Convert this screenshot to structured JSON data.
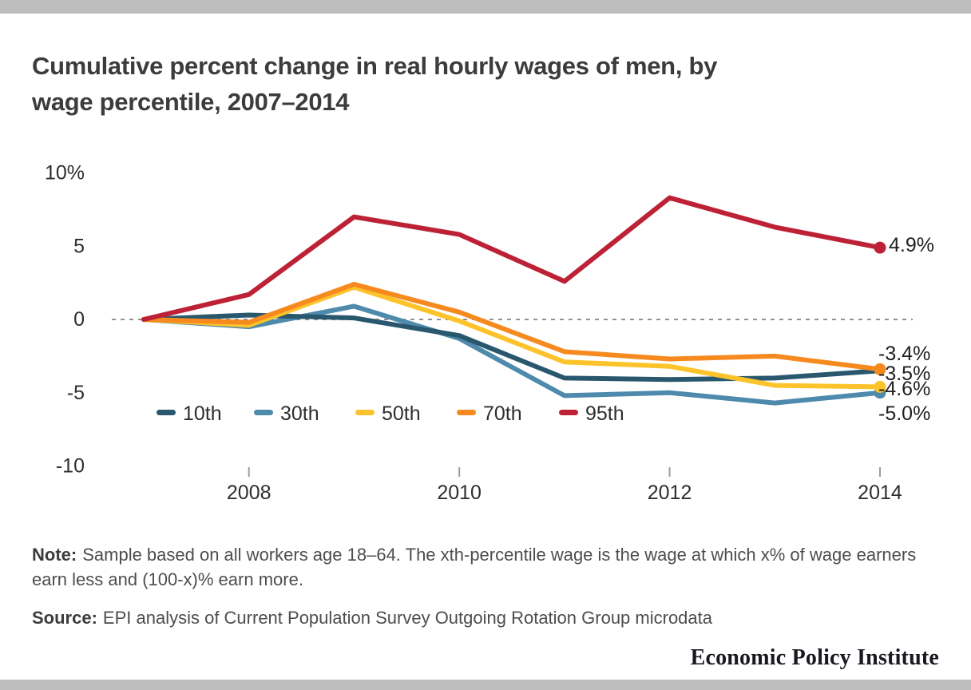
{
  "header": {
    "title_lines": [
      "Cumulative percent change in real hourly wages of men, by",
      "wage percentile, 2007–2014"
    ]
  },
  "chart_data": {
    "type": "line",
    "x": [
      2007,
      2008,
      2009,
      2010,
      2011,
      2012,
      2013,
      2014
    ],
    "series": [
      {
        "name": "10th",
        "color": "#29586E",
        "values": [
          0,
          0.3,
          0.1,
          -1.1,
          -4.0,
          -4.1,
          -4.0,
          -3.5
        ],
        "end_label": "-3.5%",
        "end_dot": false
      },
      {
        "name": "30th",
        "color": "#4E8AAB",
        "values": [
          0,
          -0.5,
          0.9,
          -1.3,
          -5.2,
          -5.0,
          -5.7,
          -5.0
        ],
        "end_label": "-5.0%",
        "end_dot": true
      },
      {
        "name": "50th",
        "color": "#FDC32A",
        "values": [
          0,
          -0.4,
          2.2,
          -0.1,
          -2.9,
          -3.2,
          -4.5,
          -4.6
        ],
        "end_label": "-4.6%",
        "end_dot": true
      },
      {
        "name": "70th",
        "color": "#F68A1F",
        "values": [
          0,
          -0.2,
          2.4,
          0.5,
          -2.2,
          -2.7,
          -2.5,
          -3.4
        ],
        "end_label": "-3.4%",
        "end_dot": true
      },
      {
        "name": "95th",
        "color": "#BD2135",
        "values": [
          0,
          1.7,
          7.0,
          5.8,
          2.6,
          8.3,
          6.3,
          4.9
        ],
        "end_label": "4.9%",
        "end_dot": true
      }
    ],
    "draw_order": [
      1,
      0,
      2,
      3,
      4
    ],
    "yticks": [
      {
        "v": 10,
        "label": "10%"
      },
      {
        "v": 5,
        "label": "5"
      },
      {
        "v": 0,
        "label": "0"
      },
      {
        "v": -5,
        "label": "-5"
      },
      {
        "v": -10,
        "label": "-10"
      }
    ],
    "xticks": [
      {
        "v": 2008,
        "label": "2008"
      },
      {
        "v": 2010,
        "label": "2010"
      },
      {
        "v": 2012,
        "label": "2012"
      },
      {
        "v": 2014,
        "label": "2014"
      }
    ],
    "ylim": [
      -10,
      10
    ],
    "zero_line": true,
    "grid": false,
    "legend_position": "inside-bottom-left"
  },
  "notes": {
    "note_label": "Note:",
    "note_body": "Sample based on all workers age 18–64. The xth-percentile wage is the wage at which x% of wage earners earn less and (100-x)% earn more.",
    "source_label": "Source:",
    "source_body": "EPI analysis of Current Population Survey Outgoing Rotation Group microdata"
  },
  "footer": {
    "brand": "Economic Policy Institute"
  },
  "colors": {
    "border_bar": "#bdbdbd",
    "zero_line": "#909090",
    "title_text": "#3c3c3c"
  }
}
